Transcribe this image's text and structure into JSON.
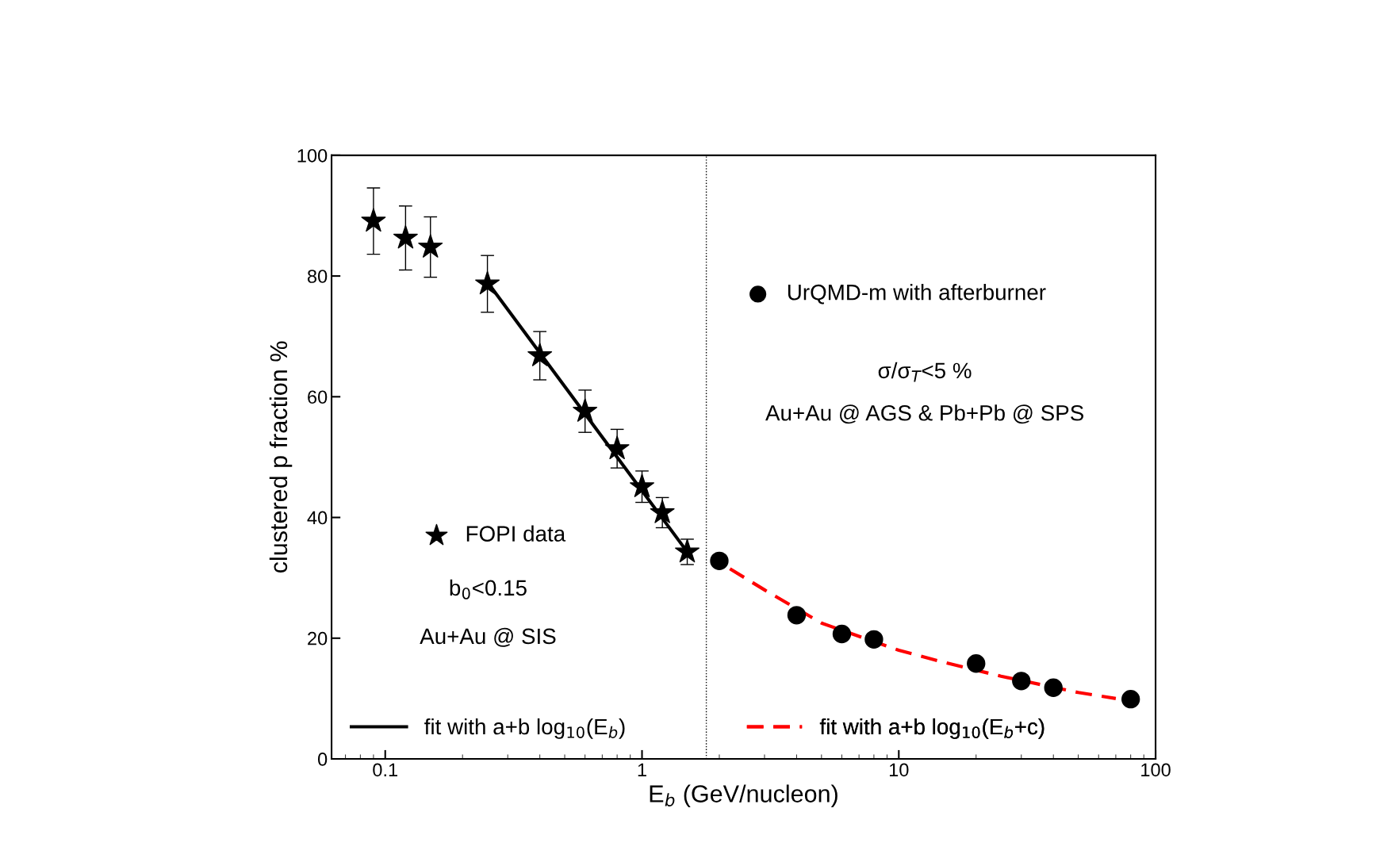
{
  "chart_data": {
    "type": "scatter",
    "xlabel": "E$_{b}$ (GeV/nucleon)",
    "ylabel": "clustered p fraction %",
    "log": "x",
    "xlim": [
      0.0618,
      100
    ],
    "xticks": [
      0.1,
      1,
      10,
      100
    ],
    "ylim": [
      0,
      100
    ],
    "yticks": [
      0,
      20,
      40,
      60,
      80,
      100
    ],
    "grid": false,
    "legend": "bottom",
    "series": [
      {
        "name": "FOPI data",
        "marker": "star",
        "color": "#000000",
        "x": [
          0.09,
          0.12,
          0.15,
          0.25,
          0.4,
          0.6,
          0.8,
          1.0,
          1.2,
          1.5
        ],
        "values": [
          89.1,
          86.3,
          84.8,
          78.7,
          66.8,
          57.6,
          51.4,
          45.1,
          40.8,
          34.3
        ],
        "errors": [
          5.5,
          5.3,
          5,
          4.7,
          4,
          3.5,
          3.2,
          2.6,
          2.5,
          2.1
        ]
      },
      {
        "name": "UrQMD-m with afterburner",
        "marker": "circle",
        "color": "#000000",
        "x": [
          2,
          4,
          6,
          8,
          20,
          30,
          40,
          80
        ],
        "values": [
          32.8,
          23.8,
          20.7,
          19.8,
          15.8,
          12.9,
          11.8,
          9.9
        ]
      },
      {
        "name": "fit with a+b log$_{10}$(E$_{b}$)",
        "type": "line",
        "line_style": "solid",
        "color": "#000000",
        "x": [
          0.25,
          1.5
        ],
        "values": [
          79,
          34.3
        ]
      },
      {
        "name": "fit with a+b log$_{10}$(E$_{b}$+c)",
        "type": "line",
        "line_style": "dashed",
        "color": "#ff0000",
        "x": [
          2.2,
          3,
          5,
          10,
          15,
          25,
          50,
          70
        ],
        "values": [
          31.5,
          28,
          22.5,
          18,
          16,
          13.7,
          11,
          10
        ]
      }
    ],
    "ref_lines": [
      {
        "axis": "x",
        "value": 1.78,
        "line_style": "dotted",
        "color": "#000000"
      }
    ],
    "annotations": [
      "b$_{0}$<0.15",
      "Au+Au @ SIS",
      "σ/σ$_{T}$<5 %",
      "Au+Au @ AGS & Pb+Pb @ SPS"
    ]
  }
}
